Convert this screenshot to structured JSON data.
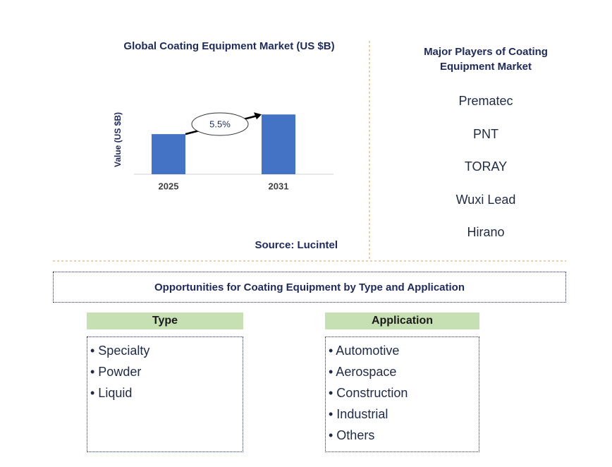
{
  "chart_data": {
    "type": "bar",
    "title": "Global Coating Equipment Market (US $B)",
    "y_label": "Value (US $B)",
    "categories": [
      "2025",
      "2031"
    ],
    "values": [
      1.0,
      1.49
    ],
    "color": "#4472c4",
    "ylim": [
      0,
      1.6
    ],
    "annotation": "5.5%",
    "source": "Source: Lucintel"
  },
  "players": {
    "title": "Major Players of Coating Equipment Market",
    "items": [
      "Prematec",
      "PNT",
      "TORAY",
      "Wuxi Lead",
      "Hirano"
    ]
  },
  "opportunities": {
    "title": "Opportunities for Coating Equipment by Type and Application",
    "type": {
      "header": "Type",
      "items": [
        "• Specialty",
        "• Powder",
        "• Liquid"
      ]
    },
    "application": {
      "header": "Application",
      "items": [
        "• Automotive",
        "• Aerospace",
        "• Construction",
        "• Industrial",
        "• Others"
      ]
    }
  }
}
